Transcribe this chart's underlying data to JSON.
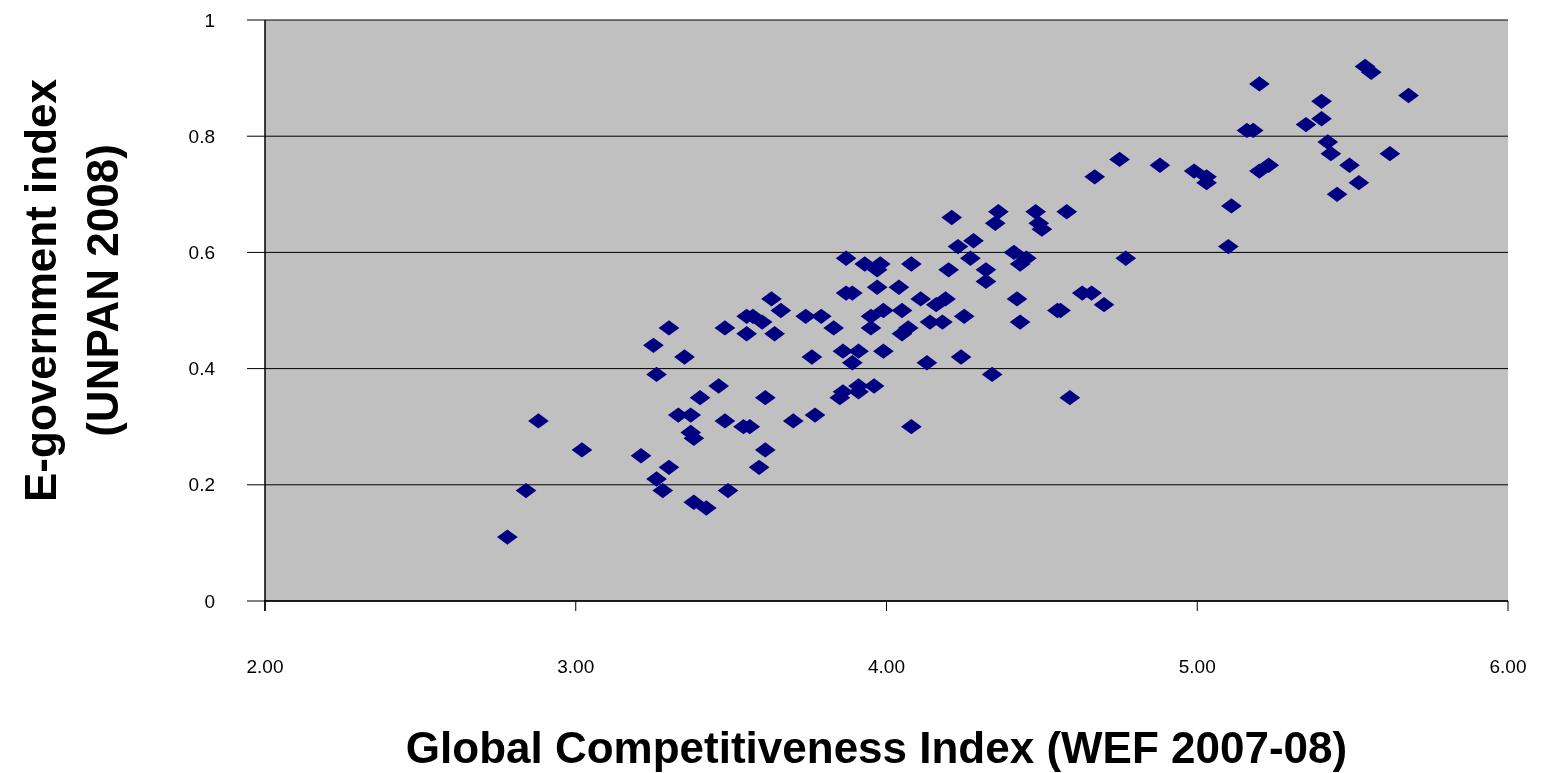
{
  "chart_data": {
    "type": "scatter",
    "xlabel": "Global Competitiveness Index (WEF 2007-08)",
    "ylabel": "E-government index (UNPAN 2008)",
    "xlim": [
      2,
      6
    ],
    "xticks": [
      {
        "value": 2,
        "label": "2.00"
      },
      {
        "value": 3,
        "label": "3.00"
      },
      {
        "value": 4,
        "label": "4.00"
      },
      {
        "value": 5,
        "label": "5.00"
      },
      {
        "value": 6,
        "label": "6.00"
      }
    ],
    "ylim": [
      0,
      1
    ],
    "yticks": [
      0,
      0.2,
      0.4,
      0.6,
      0.8,
      1
    ],
    "grid": "y",
    "marker": "diamond",
    "series": [
      {
        "color": "#000080",
        "x": [
          2.78,
          2.84,
          2.88,
          3.02,
          3.21,
          3.25,
          3.26,
          3.26,
          3.28,
          3.3,
          3.3,
          3.35,
          3.33,
          3.37,
          3.37,
          3.38,
          3.38,
          3.42,
          3.4,
          3.46,
          3.48,
          3.48,
          3.49,
          3.55,
          3.57,
          3.6,
          3.55,
          3.54,
          3.56,
          3.61,
          3.61,
          3.59,
          3.63,
          3.66,
          3.64,
          3.7,
          3.74,
          3.79,
          3.83,
          3.77,
          3.76,
          3.86,
          3.85,
          3.91,
          3.91,
          3.96,
          3.86,
          3.91,
          3.89,
          3.99,
          3.87,
          3.87,
          3.89,
          3.93,
          3.97,
          3.98,
          3.97,
          4.04,
          3.99,
          4.05,
          3.95,
          3.95,
          4.05,
          4.07,
          4.08,
          4.08,
          4.11,
          4.13,
          4.14,
          4.18,
          4.16,
          4.19,
          4.21,
          4.2,
          4.24,
          4.25,
          4.23,
          4.27,
          4.28,
          4.32,
          4.32,
          4.34,
          4.36,
          4.35,
          4.41,
          4.45,
          4.43,
          4.42,
          4.43,
          4.48,
          4.49,
          4.5,
          4.58,
          4.55,
          4.56,
          4.59,
          4.63,
          4.66,
          4.7,
          4.77,
          4.75,
          4.67,
          4.88,
          4.99,
          5.03,
          5.03,
          5.11,
          5.1,
          5.2,
          5.16,
          5.18,
          5.2,
          5.23,
          5.35,
          5.4,
          5.4,
          5.42,
          5.43,
          5.45,
          5.49,
          5.52,
          5.54,
          5.56,
          5.62,
          5.68
        ],
        "values": [
          0.11,
          0.19,
          0.31,
          0.26,
          0.25,
          0.44,
          0.39,
          0.21,
          0.19,
          0.23,
          0.47,
          0.42,
          0.32,
          0.32,
          0.29,
          0.28,
          0.17,
          0.16,
          0.35,
          0.37,
          0.47,
          0.31,
          0.19,
          0.49,
          0.49,
          0.48,
          0.46,
          0.3,
          0.3,
          0.35,
          0.26,
          0.23,
          0.52,
          0.5,
          0.46,
          0.31,
          0.49,
          0.49,
          0.47,
          0.32,
          0.42,
          0.36,
          0.35,
          0.37,
          0.36,
          0.37,
          0.43,
          0.43,
          0.41,
          0.43,
          0.53,
          0.59,
          0.53,
          0.58,
          0.57,
          0.58,
          0.54,
          0.54,
          0.5,
          0.5,
          0.49,
          0.47,
          0.46,
          0.47,
          0.58,
          0.3,
          0.52,
          0.41,
          0.48,
          0.48,
          0.51,
          0.52,
          0.66,
          0.57,
          0.42,
          0.49,
          0.61,
          0.59,
          0.62,
          0.57,
          0.55,
          0.39,
          0.67,
          0.65,
          0.6,
          0.59,
          0.58,
          0.52,
          0.48,
          0.67,
          0.65,
          0.64,
          0.67,
          0.5,
          0.5,
          0.35,
          0.53,
          0.53,
          0.51,
          0.59,
          0.76,
          0.73,
          0.75,
          0.74,
          0.73,
          0.72,
          0.68,
          0.61,
          0.89,
          0.81,
          0.81,
          0.74,
          0.75,
          0.82,
          0.86,
          0.83,
          0.79,
          0.77,
          0.7,
          0.75,
          0.72,
          0.92,
          0.91,
          0.77,
          0.87
        ]
      }
    ]
  }
}
